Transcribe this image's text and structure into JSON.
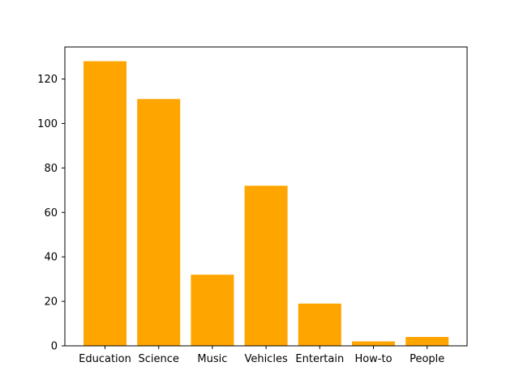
{
  "chart_data": {
    "type": "bar",
    "categories": [
      "Education",
      "Science",
      "Music",
      "Vehicles",
      "Entertain",
      "How-to",
      "People"
    ],
    "values": [
      128,
      111,
      32,
      72,
      19,
      2,
      4
    ],
    "ylim": [
      0,
      134.4
    ],
    "yticks": [
      0,
      20,
      40,
      60,
      80,
      100,
      120
    ],
    "bar_color": "#ffa500",
    "axis_color": "#000000",
    "grid": false,
    "legend": false
  }
}
